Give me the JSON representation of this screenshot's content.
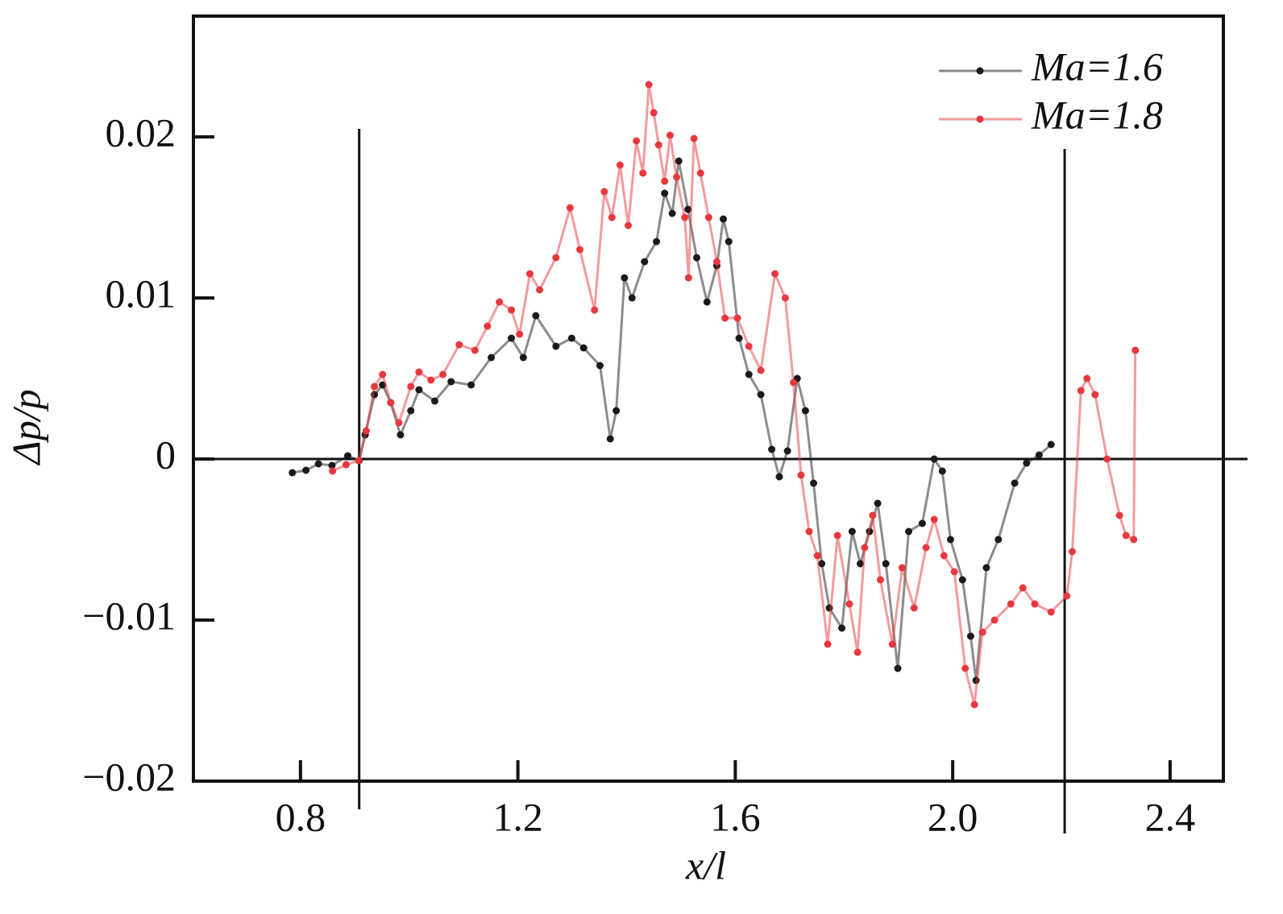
{
  "chart_data": {
    "type": "line",
    "xlabel": "x/l",
    "ylabel": "Δp/p",
    "xlim": [
      0.603,
      2.498
    ],
    "ylim": [
      -0.02,
      0.0275
    ],
    "xticks": [
      0.8,
      1.2,
      1.6,
      {
        "value": 2.0,
        "label": "2.0"
      },
      2.4
    ],
    "yticks": [
      {
        "value": -0.02,
        "label": "−0.02"
      },
      {
        "value": -0.01,
        "label": "−0.01"
      },
      0,
      0.01,
      0.02
    ],
    "reference_x": [
      0.908,
      2.206
    ],
    "reference_y": [
      0
    ],
    "legend": "upper right",
    "series": [
      {
        "name": "Ma=1.6",
        "color": "#1a1a1a",
        "x": [
          0.785,
          0.81,
          0.833,
          0.858,
          0.887,
          0.908,
          0.919,
          0.936,
          0.951,
          0.966,
          0.984,
          1.003,
          1.018,
          1.047,
          1.077,
          1.114,
          1.151,
          1.188,
          1.21,
          1.233,
          1.27,
          1.299,
          1.321,
          1.351,
          1.37,
          1.381,
          1.396,
          1.41,
          1.433,
          1.455,
          1.47,
          1.484,
          1.496,
          1.513,
          1.529,
          1.548,
          1.566,
          1.578,
          1.588,
          1.607,
          1.625,
          1.647,
          1.667,
          1.681,
          1.696,
          1.714,
          1.729,
          1.744,
          1.759,
          1.773,
          1.796,
          1.815,
          1.83,
          1.847,
          1.862,
          1.877,
          1.899,
          1.919,
          1.944,
          1.966,
          1.981,
          1.996,
          2.018,
          2.033,
          2.043,
          2.062,
          2.084,
          2.114,
          2.136,
          2.159,
          2.181
        ],
        "values": [
          -0.00085,
          -0.0007,
          -0.0003,
          -0.0004,
          0.0002,
          -0.0001,
          0.0015,
          0.004,
          0.0046,
          0.0035,
          0.0015,
          0.003,
          0.0043,
          0.0036,
          0.0048,
          0.0046,
          0.0063,
          0.0075,
          0.0063,
          0.0089,
          0.007,
          0.0075,
          0.0069,
          0.0058,
          0.00125,
          0.003,
          0.01125,
          0.01,
          0.01225,
          0.0135,
          0.0165,
          0.01525,
          0.0185,
          0.0155,
          0.0125,
          0.00975,
          0.012,
          0.0149,
          0.0135,
          0.0075,
          0.00525,
          0.004,
          0.0006,
          -0.0011,
          0.0005,
          0.005,
          0.003,
          -0.0015,
          -0.0065,
          -0.00925,
          -0.0105,
          -0.0045,
          -0.0065,
          -0.0045,
          -0.00275,
          -0.0065,
          -0.013,
          -0.0045,
          -0.004,
          0.0,
          -0.00075,
          -0.005,
          -0.0075,
          -0.011,
          -0.01375,
          -0.00675,
          -0.005,
          -0.0015,
          -0.00025,
          0.00025,
          0.0009
        ]
      },
      {
        "name": "Ma=1.8",
        "color": "#e8383d",
        "x": [
          0.859,
          0.884,
          0.907,
          0.921,
          0.936,
          0.951,
          0.966,
          0.981,
          1.003,
          1.018,
          1.04,
          1.062,
          1.092,
          1.121,
          1.144,
          1.166,
          1.188,
          1.203,
          1.222,
          1.24,
          1.27,
          1.296,
          1.314,
          1.341,
          1.359,
          1.373,
          1.388,
          1.403,
          1.418,
          1.43,
          1.441,
          1.45,
          1.459,
          1.47,
          1.48,
          1.492,
          1.507,
          1.514,
          1.524,
          1.536,
          1.551,
          1.566,
          1.581,
          1.604,
          1.625,
          1.647,
          1.673,
          1.692,
          1.707,
          1.721,
          1.736,
          1.751,
          1.77,
          1.788,
          1.81,
          1.825,
          1.838,
          1.853,
          1.867,
          1.889,
          1.907,
          1.929,
          1.951,
          1.966,
          1.984,
          2.003,
          2.023,
          2.04,
          2.055,
          2.077,
          2.107,
          2.129,
          2.151,
          2.181,
          2.21,
          2.22,
          2.236,
          2.247,
          2.262,
          2.284,
          2.307,
          2.319,
          2.333,
          2.336
        ],
        "values": [
          -0.00075,
          -0.00035,
          -0.0001,
          0.00175,
          0.0045,
          0.00525,
          0.0035,
          0.00225,
          0.0045,
          0.0054,
          0.0049,
          0.00525,
          0.0071,
          0.00675,
          0.00825,
          0.00975,
          0.00925,
          0.00775,
          0.0115,
          0.0105,
          0.0125,
          0.0156,
          0.013,
          0.00925,
          0.0166,
          0.015,
          0.01825,
          0.0145,
          0.01975,
          0.01775,
          0.02325,
          0.0215,
          0.0195,
          0.01725,
          0.0201,
          0.0175,
          0.015,
          0.01125,
          0.0199,
          0.01775,
          0.015,
          0.01225,
          0.00875,
          0.00875,
          0.007,
          0.0055,
          0.0115,
          0.01,
          0.00475,
          -0.001,
          -0.0045,
          -0.006,
          -0.0115,
          -0.00475,
          -0.009,
          -0.012,
          -0.0055,
          -0.0035,
          -0.0075,
          -0.0115,
          -0.00675,
          -0.00925,
          -0.0055,
          -0.00375,
          -0.006,
          -0.007,
          -0.013,
          -0.01525,
          -0.01075,
          -0.01,
          -0.009,
          -0.008,
          -0.009,
          -0.0095,
          -0.0085,
          -0.00575,
          0.00425,
          0.005,
          0.004,
          0.0,
          -0.0035,
          -0.00475,
          -0.005,
          0.00675
        ]
      }
    ]
  }
}
